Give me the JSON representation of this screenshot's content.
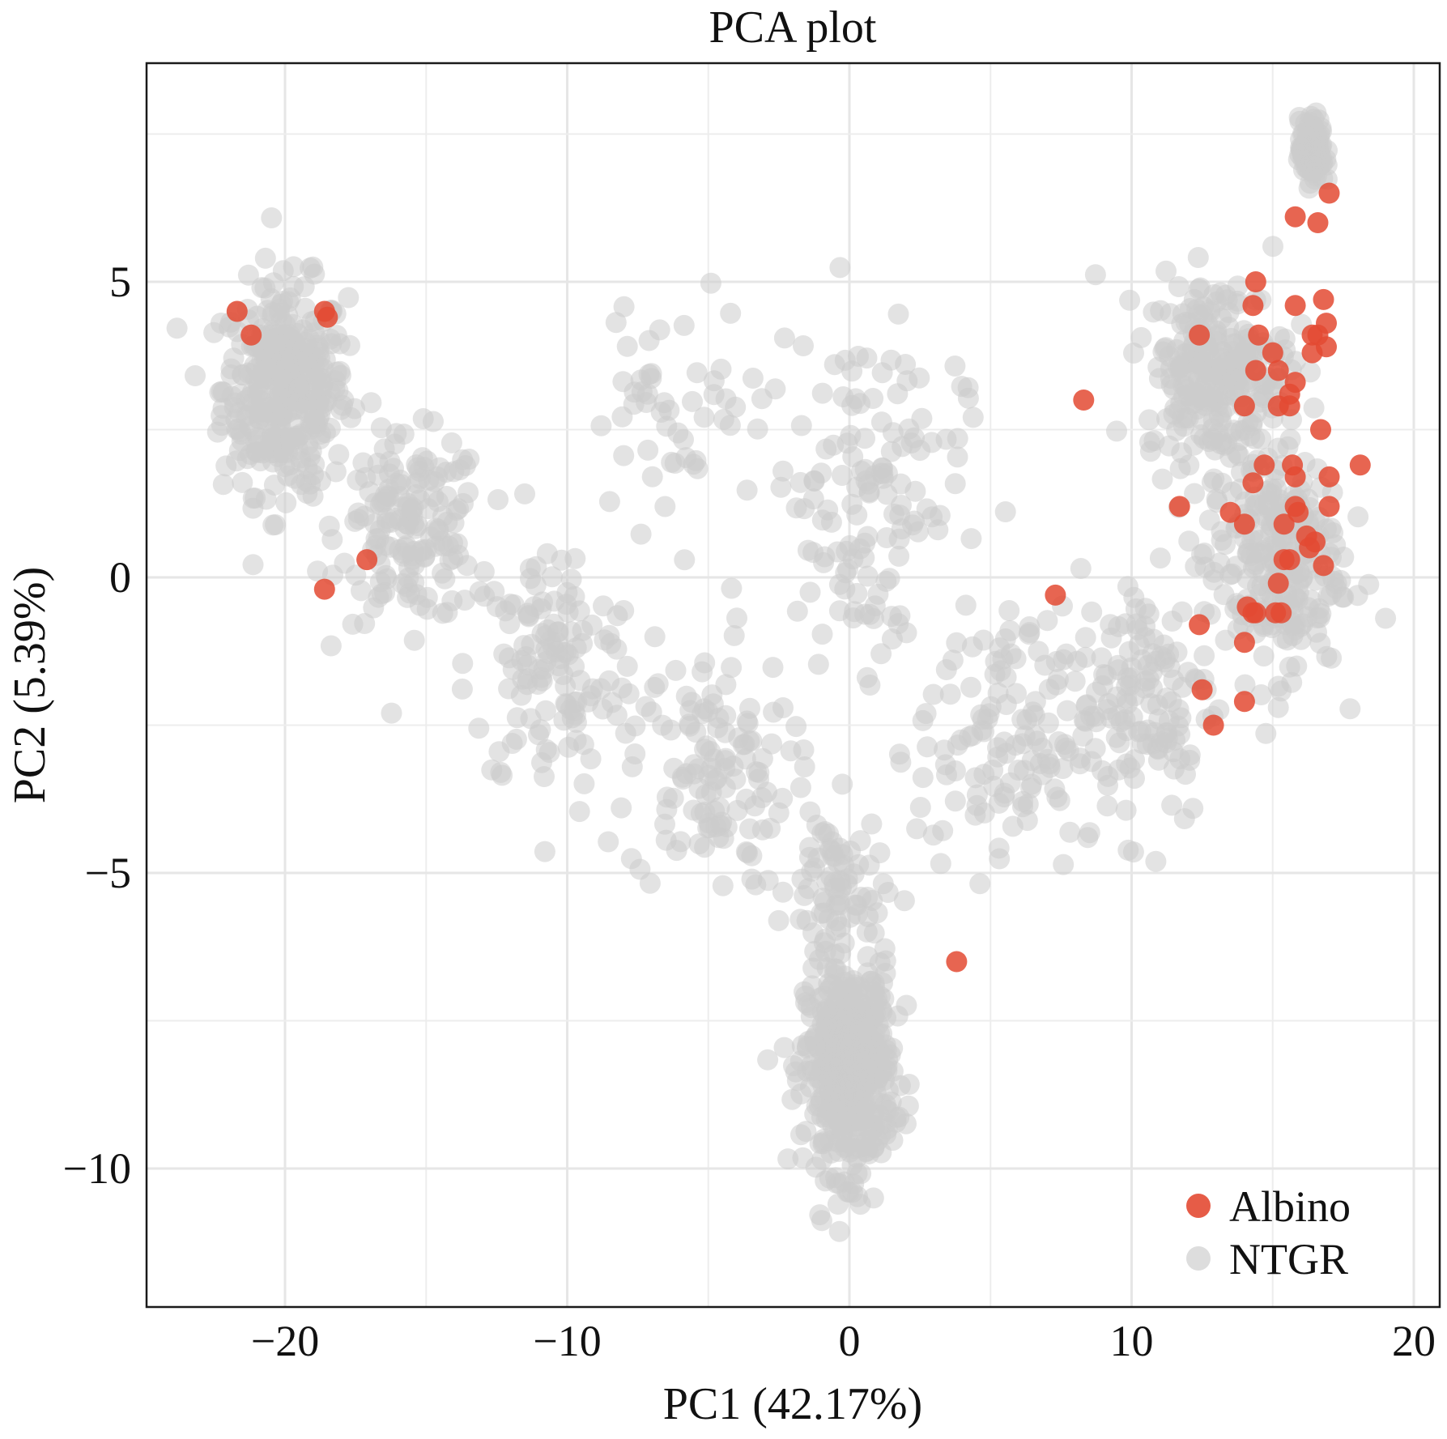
{
  "chart_data": {
    "type": "scatter",
    "title": "PCA plot",
    "xlabel": "PC1 (42.17%)",
    "ylabel": "PC2 (5.39%)",
    "xlim": [
      -25,
      20
    ],
    "ylim": [
      -12,
      9
    ],
    "xticks": [
      -20,
      -10,
      0,
      10,
      20
    ],
    "xtick_labels": [
      "−20",
      "−10",
      "0",
      "10",
      "20"
    ],
    "yticks": [
      5,
      0,
      -5,
      -10
    ],
    "ytick_labels": [
      "5",
      "0",
      "−5",
      "−10"
    ],
    "grid": true,
    "legend_position": "bottom-right",
    "series": [
      {
        "name": "NTGR",
        "color": "#cccccc",
        "clusters": [
          {
            "center": [
              -20,
              3.2
            ],
            "spread": [
              2.0,
              1.6
            ],
            "count": 380
          },
          {
            "center": [
              -15.5,
              0.8
            ],
            "spread": [
              2.3,
              1.4
            ],
            "count": 160
          },
          {
            "center": [
              -10.5,
              -1.5
            ],
            "spread": [
              2.8,
              2.0
            ],
            "count": 130
          },
          {
            "center": [
              -5,
              -3.3
            ],
            "spread": [
              2.6,
              1.8
            ],
            "count": 120
          },
          {
            "center": [
              0,
              -8.3
            ],
            "spread": [
              1.4,
              1.6
            ],
            "count": 520
          },
          {
            "center": [
              -0.5,
              -5.2
            ],
            "spread": [
              1.5,
              1.2
            ],
            "count": 70
          },
          {
            "center": [
              0.5,
              1.5
            ],
            "spread": [
              3.2,
              2.6
            ],
            "count": 140
          },
          {
            "center": [
              5.5,
              -2.8
            ],
            "spread": [
              2.8,
              2.0
            ],
            "count": 130
          },
          {
            "center": [
              10.5,
              -2.0
            ],
            "spread": [
              2.2,
              2.0
            ],
            "count": 130
          },
          {
            "center": [
              13,
              3.5
            ],
            "spread": [
              2.3,
              1.4
            ],
            "count": 260
          },
          {
            "center": [
              15,
              0.3
            ],
            "spread": [
              2.2,
              1.8
            ],
            "count": 260
          },
          {
            "center": [
              16.4,
              7.2
            ],
            "spread": [
              0.4,
              0.5
            ],
            "count": 120
          },
          {
            "center": [
              -6,
              3.0
            ],
            "spread": [
              3.0,
              1.6
            ],
            "count": 50
          }
        ]
      },
      {
        "name": "Albino",
        "color": "#e34a33",
        "points": [
          [
            -21.7,
            4.5
          ],
          [
            -21.2,
            4.1
          ],
          [
            -18.6,
            4.5
          ],
          [
            -18.5,
            4.4
          ],
          [
            -17.1,
            0.3
          ],
          [
            -18.6,
            -0.2
          ],
          [
            3.8,
            -6.5
          ],
          [
            7.3,
            -0.3
          ],
          [
            8.3,
            3.0
          ],
          [
            17.0,
            6.5
          ],
          [
            15.8,
            6.1
          ],
          [
            16.6,
            6.0
          ],
          [
            14.4,
            5.0
          ],
          [
            12.4,
            4.1
          ],
          [
            14.3,
            4.6
          ],
          [
            15.8,
            4.6
          ],
          [
            16.8,
            4.7
          ],
          [
            16.9,
            4.3
          ],
          [
            16.4,
            4.1
          ],
          [
            16.6,
            4.1
          ],
          [
            16.9,
            3.9
          ],
          [
            14.5,
            4.1
          ],
          [
            15.0,
            3.8
          ],
          [
            16.4,
            3.8
          ],
          [
            14.4,
            3.5
          ],
          [
            15.2,
            3.5
          ],
          [
            15.8,
            3.3
          ],
          [
            15.6,
            3.1
          ],
          [
            14.0,
            2.9
          ],
          [
            15.2,
            2.9
          ],
          [
            15.6,
            2.9
          ],
          [
            16.7,
            2.5
          ],
          [
            14.7,
            1.9
          ],
          [
            15.7,
            1.9
          ],
          [
            18.1,
            1.9
          ],
          [
            14.3,
            1.6
          ],
          [
            15.8,
            1.7
          ],
          [
            17.0,
            1.7
          ],
          [
            11.7,
            1.2
          ],
          [
            13.5,
            1.1
          ],
          [
            15.9,
            1.1
          ],
          [
            15.8,
            1.2
          ],
          [
            17.0,
            1.2
          ],
          [
            14.0,
            0.9
          ],
          [
            15.4,
            0.9
          ],
          [
            16.2,
            0.7
          ],
          [
            16.5,
            0.6
          ],
          [
            16.3,
            0.5
          ],
          [
            15.4,
            0.3
          ],
          [
            15.6,
            0.3
          ],
          [
            16.8,
            0.2
          ],
          [
            15.2,
            -0.1
          ],
          [
            14.1,
            -0.5
          ],
          [
            14.3,
            -0.6
          ],
          [
            15.1,
            -0.6
          ],
          [
            15.3,
            -0.6
          ],
          [
            14.4,
            -0.6
          ],
          [
            12.4,
            -0.8
          ],
          [
            14.0,
            -1.1
          ],
          [
            12.5,
            -1.9
          ],
          [
            14.0,
            -2.1
          ],
          [
            12.9,
            -2.5
          ]
        ]
      }
    ]
  }
}
